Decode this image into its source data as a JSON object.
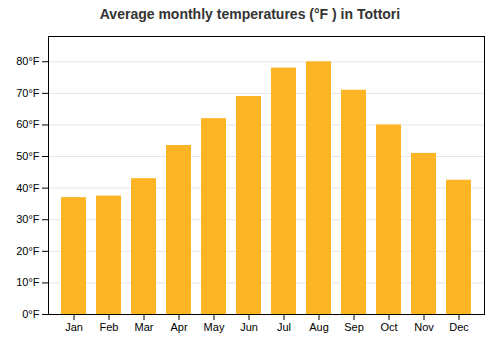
{
  "chart_data": {
    "type": "bar",
    "title": "Average monthly temperatures (°F ) in Tottori",
    "categories": [
      "Jan",
      "Feb",
      "Mar",
      "Apr",
      "May",
      "Jun",
      "Jul",
      "Aug",
      "Sep",
      "Oct",
      "Nov",
      "Dec"
    ],
    "values": [
      37,
      37.5,
      43,
      53.5,
      62,
      69,
      78,
      80,
      71,
      60,
      51,
      42.5
    ],
    "color": "#FDB525",
    "ylim": [
      0,
      88
    ],
    "yticks": [
      {
        "value": 0,
        "label": "0°F"
      },
      {
        "value": 10,
        "label": "10°F"
      },
      {
        "value": 20,
        "label": "20°F"
      },
      {
        "value": 30,
        "label": "30°F"
      },
      {
        "value": 40,
        "label": "40°F"
      },
      {
        "value": 50,
        "label": "50°F"
      },
      {
        "value": 60,
        "label": "60°F"
      },
      {
        "value": 70,
        "label": "70°F"
      },
      {
        "value": 80,
        "label": "80°F"
      }
    ],
    "grid": true
  }
}
